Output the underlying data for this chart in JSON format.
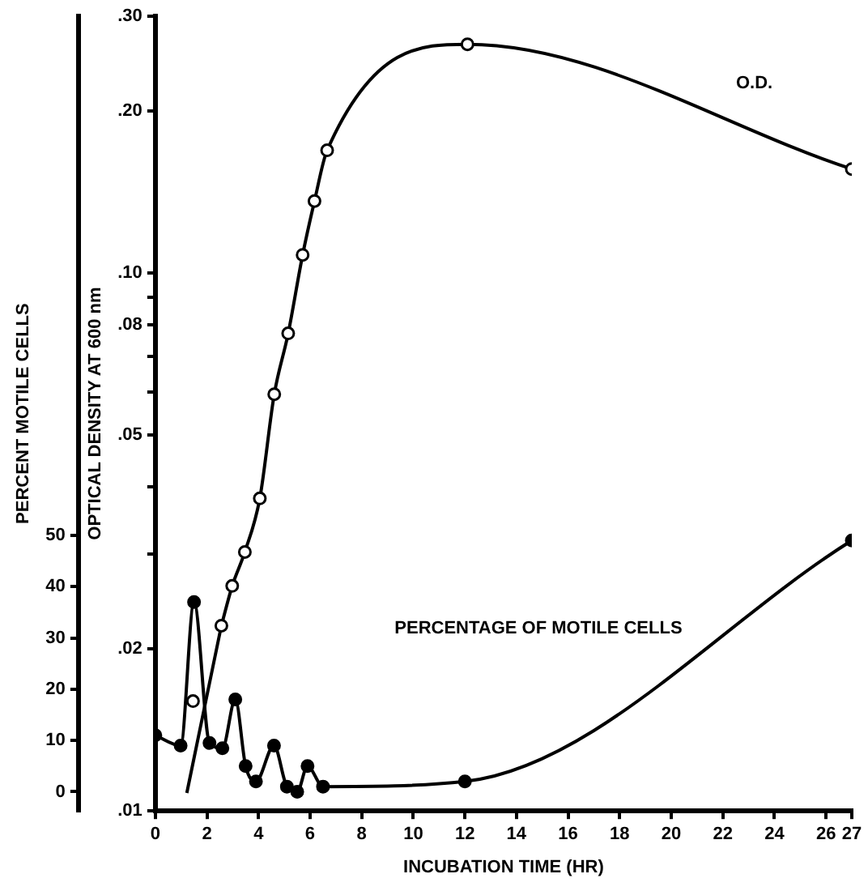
{
  "chart_data": {
    "type": "line",
    "xlabel": "INCUBATION TIME (HR)",
    "ylabel": "OPTICAL DENSITY AT 600 nm",
    "y2label": "PERCENT MOTILE CELLS",
    "xlim": [
      0,
      27
    ],
    "xticks": [
      0,
      2,
      4,
      6,
      8,
      10,
      12,
      14,
      16,
      18,
      20,
      22,
      24,
      26,
      27
    ],
    "log": "y",
    "ylim": [
      0.01,
      0.3
    ],
    "yticks": [
      {
        "value": 0.01,
        "label": ".01"
      },
      {
        "value": 0.02,
        "label": ".02"
      },
      {
        "value": 0.03,
        "label": null
      },
      {
        "value": 0.04,
        "label": null
      },
      {
        "value": 0.05,
        "label": ".05"
      },
      {
        "value": 0.06,
        "label": null
      },
      {
        "value": 0.07,
        "label": null
      },
      {
        "value": 0.08,
        "label": ".08"
      },
      {
        "value": 0.09,
        "label": null
      },
      {
        "value": 0.1,
        "label": ".10"
      },
      {
        "value": 0.2,
        "label": ".20"
      },
      {
        "value": 0.3,
        "label": ".30"
      }
    ],
    "y2lim": [
      -3.75,
      151.25
    ],
    "y2ticks": [
      0,
      10,
      20,
      30,
      40,
      50
    ],
    "grid": false,
    "legend": false,
    "series": [
      {
        "name": "O.D.",
        "color": "#000000",
        "marker": "circle",
        "x": [
          2.56,
          2.98,
          3.47,
          4.05,
          4.61,
          5.15,
          5.71,
          6.17,
          6.66,
          12.1,
          27
        ],
        "values": [
          0.0221,
          0.0262,
          0.0303,
          0.0381,
          0.0595,
          0.0772,
          0.108,
          0.136,
          0.169,
          0.266,
          0.156
        ]
      },
      {
        "type": "line",
        "color": "#000000",
        "marker": "none",
        "x": [
          1.22,
          2.56
        ],
        "values": [
          0.0108,
          0.0221
        ]
      },
      {
        "type": "scatter",
        "color": "#000000",
        "marker": "circle",
        "x": [
          1.46
        ],
        "values": [
          0.016
        ]
      },
      {
        "name": "PERCENTAGE OF MOTILE CELLS",
        "type": "line",
        "axis": "y2",
        "color": "#000000",
        "marker": "circle",
        "x": [
          0,
          0.98,
          1.5,
          2.1,
          2.6,
          3.1,
          3.5,
          3.9,
          4.6,
          5.1,
          5.5,
          5.9,
          6.5,
          12,
          27
        ],
        "values": [
          11,
          9,
          37,
          9.5,
          8.5,
          18,
          5,
          2,
          9,
          1,
          0,
          5,
          1,
          2,
          49
        ]
      }
    ]
  }
}
